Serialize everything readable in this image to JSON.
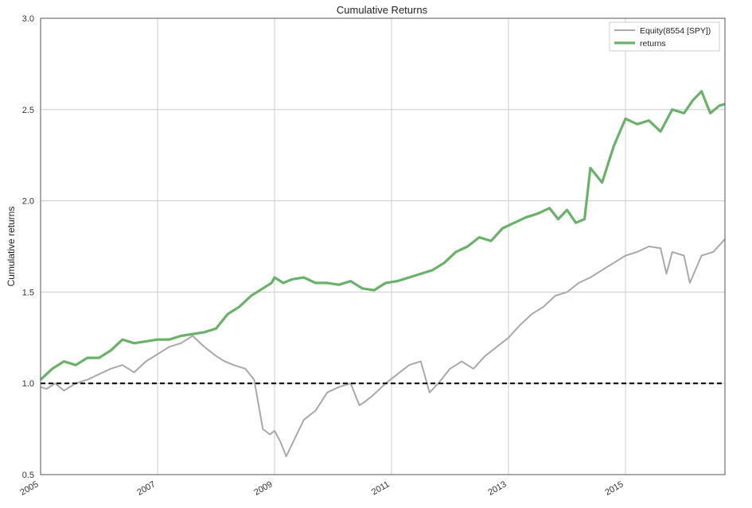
{
  "chart_data": {
    "type": "line",
    "title": "Cumulative Returns",
    "ylabel": "Cumulative returns",
    "xlabel": "",
    "xlim": [
      2005.0,
      2016.7
    ],
    "ylim": [
      0.5,
      3.0
    ],
    "grid": true,
    "legend_position": "top-right",
    "x_ticks": [
      "2005",
      "2007",
      "2009",
      "2011",
      "2013",
      "2015"
    ],
    "x_tick_values": [
      2005,
      2007,
      2009,
      2011,
      2013,
      2015
    ],
    "y_ticks": [
      "0.5",
      "1.0",
      "1.5",
      "2.0",
      "2.5",
      "3.0"
    ],
    "y_tick_values": [
      0.5,
      1.0,
      1.5,
      2.0,
      2.5,
      3.0
    ],
    "reference_line": {
      "y": 1.0,
      "style": "dashed",
      "color": "#000000"
    },
    "series": [
      {
        "name": "Equity(8554 [SPY])",
        "color": "#a9a9a9",
        "x": [
          2005.0,
          2005.1,
          2005.25,
          2005.4,
          2005.6,
          2005.8,
          2006.0,
          2006.2,
          2006.4,
          2006.6,
          2006.8,
          2007.0,
          2007.2,
          2007.4,
          2007.6,
          2007.8,
          2008.0,
          2008.15,
          2008.3,
          2008.5,
          2008.65,
          2008.8,
          2008.92,
          2009.0,
          2009.1,
          2009.2,
          2009.35,
          2009.5,
          2009.7,
          2009.9,
          2010.1,
          2010.3,
          2010.45,
          2010.55,
          2010.7,
          2010.9,
          2011.1,
          2011.3,
          2011.5,
          2011.65,
          2011.8,
          2012.0,
          2012.2,
          2012.4,
          2012.6,
          2012.8,
          2013.0,
          2013.2,
          2013.4,
          2013.6,
          2013.8,
          2014.0,
          2014.2,
          2014.4,
          2014.6,
          2014.8,
          2015.0,
          2015.2,
          2015.4,
          2015.6,
          2015.7,
          2015.8,
          2016.0,
          2016.1,
          2016.3,
          2016.5,
          2016.7
        ],
        "values": [
          0.98,
          0.97,
          1.0,
          0.96,
          1.0,
          1.02,
          1.05,
          1.08,
          1.1,
          1.06,
          1.12,
          1.16,
          1.2,
          1.22,
          1.26,
          1.2,
          1.15,
          1.12,
          1.1,
          1.08,
          1.02,
          0.75,
          0.72,
          0.74,
          0.68,
          0.6,
          0.7,
          0.8,
          0.85,
          0.95,
          0.98,
          1.0,
          0.88,
          0.9,
          0.94,
          1.0,
          1.05,
          1.1,
          1.12,
          0.95,
          1.0,
          1.08,
          1.12,
          1.08,
          1.15,
          1.2,
          1.25,
          1.32,
          1.38,
          1.42,
          1.48,
          1.5,
          1.55,
          1.58,
          1.62,
          1.66,
          1.7,
          1.72,
          1.75,
          1.74,
          1.6,
          1.72,
          1.7,
          1.55,
          1.7,
          1.72,
          1.79
        ]
      },
      {
        "name": "returns",
        "color": "#6ab26a",
        "x": [
          2005.0,
          2005.2,
          2005.4,
          2005.6,
          2005.8,
          2006.0,
          2006.2,
          2006.4,
          2006.6,
          2006.8,
          2007.0,
          2007.2,
          2007.4,
          2007.6,
          2007.8,
          2008.0,
          2008.2,
          2008.4,
          2008.6,
          2008.8,
          2008.95,
          2009.0,
          2009.15,
          2009.3,
          2009.5,
          2009.7,
          2009.9,
          2010.1,
          2010.3,
          2010.5,
          2010.7,
          2010.9,
          2011.1,
          2011.3,
          2011.5,
          2011.7,
          2011.9,
          2012.1,
          2012.3,
          2012.5,
          2012.7,
          2012.9,
          2013.1,
          2013.3,
          2013.5,
          2013.7,
          2013.85,
          2014.0,
          2014.15,
          2014.3,
          2014.4,
          2014.6,
          2014.8,
          2015.0,
          2015.2,
          2015.4,
          2015.6,
          2015.8,
          2016.0,
          2016.15,
          2016.3,
          2016.45,
          2016.6,
          2016.7
        ],
        "values": [
          1.02,
          1.08,
          1.12,
          1.1,
          1.14,
          1.14,
          1.18,
          1.24,
          1.22,
          1.23,
          1.24,
          1.24,
          1.26,
          1.27,
          1.28,
          1.3,
          1.38,
          1.42,
          1.48,
          1.52,
          1.55,
          1.58,
          1.55,
          1.57,
          1.58,
          1.55,
          1.55,
          1.54,
          1.56,
          1.52,
          1.51,
          1.55,
          1.56,
          1.58,
          1.6,
          1.62,
          1.66,
          1.72,
          1.75,
          1.8,
          1.78,
          1.85,
          1.88,
          1.91,
          1.93,
          1.96,
          1.9,
          1.95,
          1.88,
          1.9,
          2.18,
          2.1,
          2.3,
          2.45,
          2.42,
          2.44,
          2.38,
          2.5,
          2.48,
          2.55,
          2.6,
          2.48,
          2.52,
          2.53
        ]
      }
    ]
  }
}
